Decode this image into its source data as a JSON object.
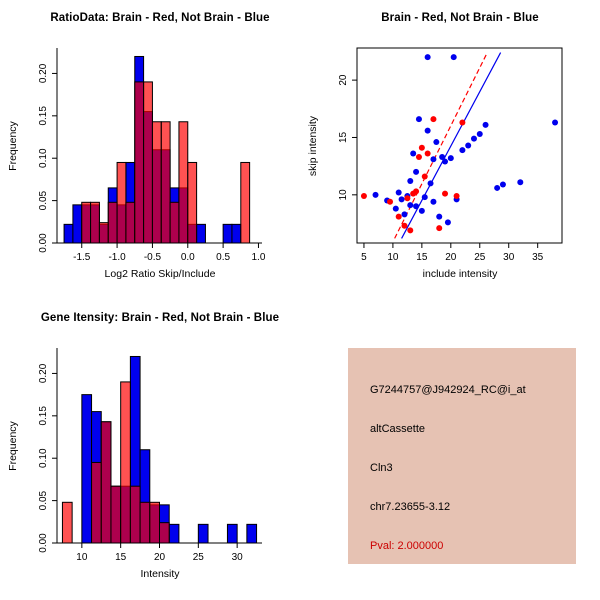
{
  "colors": {
    "brain": "#FF0000",
    "not_brain": "#0000EE",
    "background": "#FFFFFF"
  },
  "info": {
    "lines": [
      "G7244757@J942924_RC@i_at",
      "altCassette",
      "Cln3",
      "chr7.23655-3.12"
    ],
    "pval": "Pval: 2.000000",
    "bg_color": "#E6C2B3",
    "pval_color": "#CC0000"
  },
  "chart_data": [
    {
      "id": "ratio-histogram",
      "type": "bar",
      "title": "RatioData: Brain - Red, Not Brain - Blue",
      "xlabel": "Log2 Ratio Skip/Include",
      "ylabel": "Frequency",
      "xlim": [
        -1.85,
        1.05
      ],
      "ylim": [
        0,
        0.23
      ],
      "xtick_vals": [
        -1.5,
        -1,
        -0.5,
        0,
        0.5,
        1
      ],
      "xtick_labels": [
        "-1.5",
        "-1.0",
        "-0.5",
        "0.0",
        "0.5",
        "1.0"
      ],
      "ytick_vals": [
        0,
        0.05,
        0.1,
        0.15,
        0.2
      ],
      "ytick_labels": [
        "0.00",
        "0.05",
        "0.10",
        "0.15",
        "0.20"
      ],
      "bin_width": 0.125,
      "grid": false,
      "legend": "none",
      "series": [
        {
          "name": "Not Brain",
          "color": "#0000EE",
          "opacity": 1,
          "bins": [
            [
              -1.75,
              0.022
            ],
            [
              -1.625,
              0.045
            ],
            [
              -1.5,
              0.045
            ],
            [
              -1.375,
              0.045
            ],
            [
              -1.25,
              0.022
            ],
            [
              -1.125,
              0.065
            ],
            [
              -1.0,
              0.045
            ],
            [
              -0.875,
              0.095
            ],
            [
              -0.75,
              0.22
            ],
            [
              -0.625,
              0.155
            ],
            [
              -0.5,
              0.11
            ],
            [
              -0.375,
              0.11
            ],
            [
              -0.25,
              0.065
            ],
            [
              -0.125,
              0.065
            ],
            [
              0.0,
              0.022
            ],
            [
              0.125,
              0.022
            ],
            [
              0.5,
              0.022
            ],
            [
              0.625,
              0.022
            ]
          ]
        },
        {
          "name": "Brain",
          "color": "#FF0000",
          "opacity": 0.68,
          "bins": [
            [
              -1.5,
              0.048
            ],
            [
              -1.375,
              0.048
            ],
            [
              -1.25,
              0.024
            ],
            [
              -1.125,
              0.048
            ],
            [
              -1.0,
              0.095
            ],
            [
              -0.875,
              0.048
            ],
            [
              -0.75,
              0.19
            ],
            [
              -0.625,
              0.19
            ],
            [
              -0.5,
              0.143
            ],
            [
              -0.375,
              0.143
            ],
            [
              -0.25,
              0.048
            ],
            [
              -0.125,
              0.143
            ],
            [
              0.0,
              0.095
            ],
            [
              0.75,
              0.095
            ]
          ]
        }
      ]
    },
    {
      "id": "intensity-scatter",
      "type": "scatter",
      "title": "Brain - Red, Not Brain - Blue",
      "xlabel": "include intensity",
      "ylabel": "skip intensity",
      "xlim": [
        3.8,
        39.2
      ],
      "ylim": [
        5.8,
        22.8
      ],
      "xtick_vals": [
        5,
        10,
        15,
        20,
        25,
        30,
        35
      ],
      "xtick_labels": [
        "5",
        "10",
        "15",
        "20",
        "25",
        "30",
        "35"
      ],
      "ytick_vals": [
        10,
        15,
        20
      ],
      "ytick_labels": [
        "10",
        "15",
        "20"
      ],
      "grid": false,
      "legend": "none",
      "lines": [
        {
          "name": "brain-fit-line",
          "color": "#FF0000",
          "dash": true,
          "x1": 10.3,
          "y1": 6.2,
          "x2": 26.3,
          "y2": 22.4
        },
        {
          "name": "not-brain-fit-line",
          "color": "#0000EE",
          "dash": false,
          "x1": 11.5,
          "y1": 6.2,
          "x2": 28.6,
          "y2": 22.4
        }
      ],
      "series": [
        {
          "name": "Not Brain",
          "color": "#0000EE",
          "points": [
            [
              7,
              10
            ],
            [
              9,
              9.5
            ],
            [
              10.5,
              8.8
            ],
            [
              11,
              10.2
            ],
            [
              11.5,
              9.6
            ],
            [
              12,
              8.3
            ],
            [
              12.5,
              9.9
            ],
            [
              13,
              9.1
            ],
            [
              13,
              11.2
            ],
            [
              13.5,
              13.6
            ],
            [
              14,
              9
            ],
            [
              14,
              12
            ],
            [
              14.5,
              16.6
            ],
            [
              15,
              8.6
            ],
            [
              15.5,
              9.8
            ],
            [
              16,
              15.6
            ],
            [
              16,
              22
            ],
            [
              16.5,
              11
            ],
            [
              17,
              9.4
            ],
            [
              17,
              13.1
            ],
            [
              17.5,
              14.6
            ],
            [
              18,
              8.1
            ],
            [
              18.5,
              13.3
            ],
            [
              19,
              12.9
            ],
            [
              19.5,
              7.6
            ],
            [
              20,
              13.2
            ],
            [
              20.5,
              22
            ],
            [
              21,
              9.6
            ],
            [
              22,
              13.9
            ],
            [
              23,
              14.3
            ],
            [
              24,
              14.9
            ],
            [
              25,
              15.3
            ],
            [
              26,
              16.1
            ],
            [
              28,
              10.6
            ],
            [
              29,
              10.9
            ],
            [
              32,
              11.1
            ],
            [
              38,
              16.3
            ]
          ]
        },
        {
          "name": "Brain",
          "color": "#FF0000",
          "points": [
            [
              5,
              9.9
            ],
            [
              9.5,
              9.4
            ],
            [
              11,
              8.1
            ],
            [
              12,
              7.3
            ],
            [
              12.5,
              9.7
            ],
            [
              13,
              6.9
            ],
            [
              13.5,
              10.1
            ],
            [
              14,
              10.3
            ],
            [
              14.5,
              13.3
            ],
            [
              15,
              14.1
            ],
            [
              15.5,
              11.6
            ],
            [
              16,
              13.6
            ],
            [
              17,
              16.6
            ],
            [
              18,
              7.1
            ],
            [
              19,
              10.1
            ],
            [
              21,
              9.9
            ],
            [
              22,
              16.3
            ]
          ]
        }
      ]
    },
    {
      "id": "gene-intensity-histogram",
      "type": "bar",
      "title": "Gene Itensity: Brain - Red, Not Brain - Blue",
      "xlabel": "Intensity",
      "ylabel": "Frequency",
      "xlim": [
        6.8,
        33.2
      ],
      "ylim": [
        0,
        0.23
      ],
      "xtick_vals": [
        10,
        15,
        20,
        25,
        30
      ],
      "xtick_labels": [
        "10",
        "15",
        "20",
        "25",
        "30"
      ],
      "ytick_vals": [
        0,
        0.05,
        0.1,
        0.15,
        0.2
      ],
      "ytick_labels": [
        "0.00",
        "0.05",
        "0.10",
        "0.15",
        "0.20"
      ],
      "bin_width": 1.25,
      "grid": false,
      "legend": "none",
      "series": [
        {
          "name": "Not Brain",
          "color": "#0000EE",
          "opacity": 1,
          "bins": [
            [
              10.0,
              0.175
            ],
            [
              11.25,
              0.155
            ],
            [
              12.5,
              0.143
            ],
            [
              13.75,
              0.067
            ],
            [
              15.0,
              0.067
            ],
            [
              16.25,
              0.22
            ],
            [
              17.5,
              0.11
            ],
            [
              18.75,
              0.045
            ],
            [
              20.0,
              0.045
            ],
            [
              21.25,
              0.022
            ],
            [
              25.0,
              0.022
            ],
            [
              28.75,
              0.022
            ],
            [
              31.25,
              0.022
            ]
          ]
        },
        {
          "name": "Brain",
          "color": "#FF0000",
          "opacity": 0.68,
          "bins": [
            [
              7.5,
              0.048
            ],
            [
              11.25,
              0.095
            ],
            [
              12.5,
              0.143
            ],
            [
              13.75,
              0.067
            ],
            [
              15.0,
              0.19
            ],
            [
              16.25,
              0.067
            ],
            [
              17.5,
              0.048
            ],
            [
              18.75,
              0.048
            ],
            [
              20.0,
              0.024
            ]
          ]
        }
      ]
    }
  ]
}
